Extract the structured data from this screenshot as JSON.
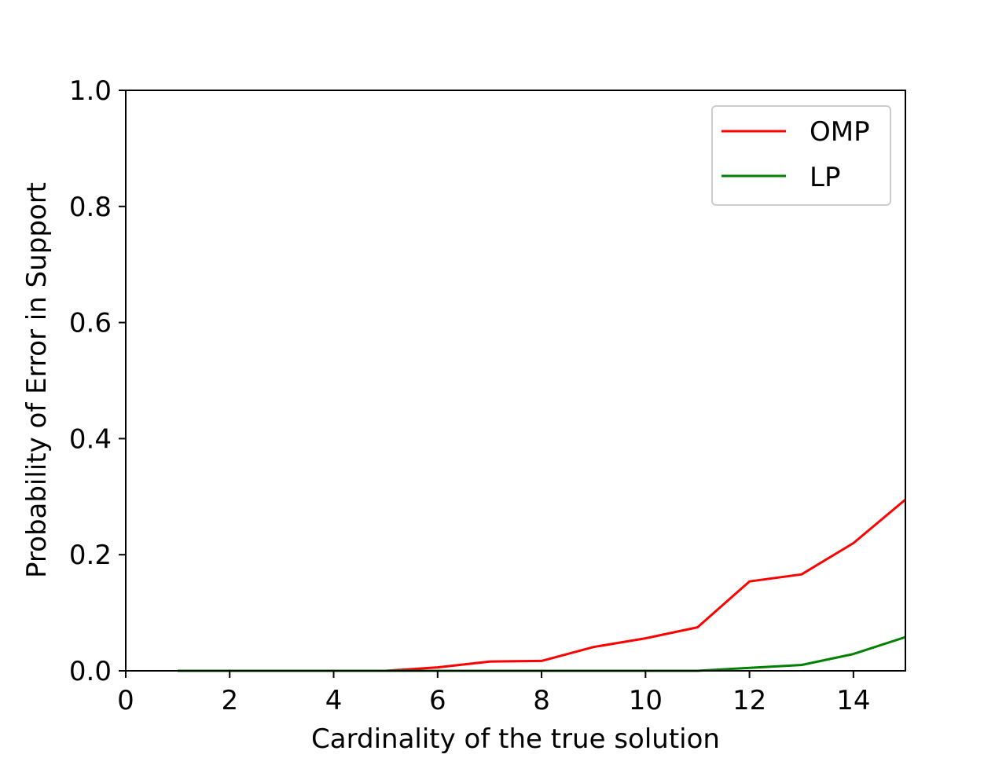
{
  "chart_data": {
    "type": "line",
    "title": "",
    "xlabel": "Cardinality of the true solution",
    "ylabel": "Probability of Error in Support",
    "xlim": [
      0,
      15
    ],
    "ylim": [
      0,
      1.0
    ],
    "x_ticks": [
      "0",
      "2",
      "4",
      "6",
      "8",
      "10",
      "12",
      "14"
    ],
    "y_ticks": [
      "0.0",
      "0.2",
      "0.4",
      "0.6",
      "0.8",
      "1.0"
    ],
    "grid": false,
    "legend_position": "top-right",
    "x": [
      1,
      2,
      3,
      4,
      5,
      6,
      7,
      8,
      9,
      10,
      11,
      12,
      13,
      14,
      15
    ],
    "series": [
      {
        "name": "OMP",
        "color": "#ff0000",
        "values": [
          0.0,
          0.0,
          0.0,
          0.0,
          0.0,
          0.006,
          0.016,
          0.017,
          0.041,
          0.056,
          0.075,
          0.154,
          0.166,
          0.22,
          0.295
        ]
      },
      {
        "name": "LP",
        "color": "#008000",
        "values": [
          0.0,
          0.0,
          0.0,
          0.0,
          0.0,
          0.0,
          0.0,
          0.0,
          0.0,
          0.0,
          0.0,
          0.005,
          0.01,
          0.029,
          0.058
        ]
      }
    ]
  }
}
